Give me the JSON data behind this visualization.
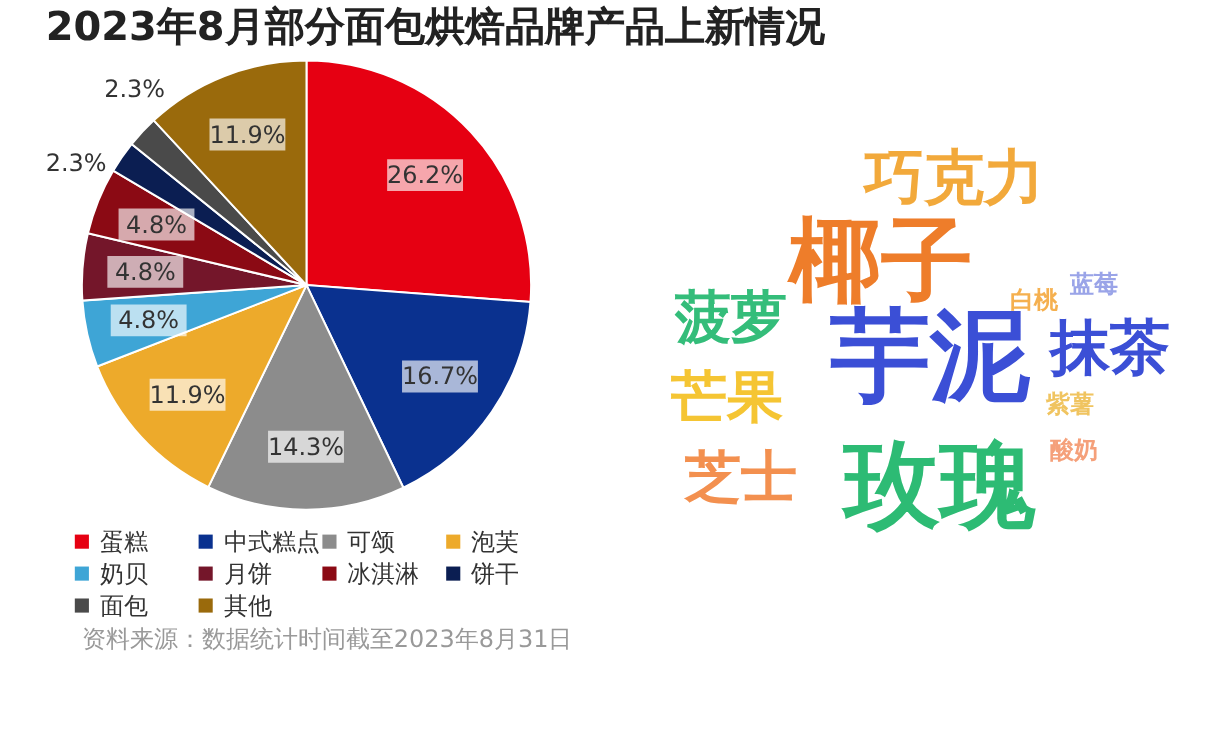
{
  "chart_data": [
    {
      "type": "pie",
      "title": "2023年8月部分面包烘焙品牌产品上新情况",
      "categories": [
        "蛋糕",
        "中式糕点",
        "可颂",
        "泡芙",
        "奶贝",
        "月饼",
        "冰淇淋",
        "饼干",
        "面包",
        "其他"
      ],
      "values": [
        26.2,
        16.7,
        14.3,
        11.9,
        4.8,
        4.8,
        4.8,
        2.3,
        2.3,
        11.9
      ],
      "value_labels": [
        "26.2%",
        "16.7%",
        "14.3%",
        "11.9%",
        "4.8%",
        "4.8%",
        "4.8%",
        "2.3%",
        "2.3%",
        "11.9%"
      ],
      "colors": [
        "#e60012",
        "#0a318f",
        "#8c8c8c",
        "#edaa2b",
        "#3ea5d6",
        "#74162a",
        "#8b0a14",
        "#0b1e52",
        "#4a4a4a",
        "#9a6a0c"
      ],
      "legend": "bottom",
      "annotations": [
        "资料来源：数据统计时间截至2023年8月31日"
      ]
    },
    {
      "type": "other",
      "annotations": [
        "巧克力",
        "椰子",
        "菠萝",
        "芋泥",
        "抹茶",
        "芒果",
        "芝士",
        "玫瑰",
        "白桃",
        "蓝莓",
        "紫薯",
        "酸奶"
      ],
      "colors": [
        "#f2a93b",
        "#ee7d2a",
        "#34bd7a",
        "#3b4fd6",
        "#3b4fd6",
        "#f5c533",
        "#f3904f",
        "#2dbb74",
        "#f5b04f",
        "#9aa4e8",
        "#f0c460",
        "#f5a07a"
      ]
    }
  ]
}
